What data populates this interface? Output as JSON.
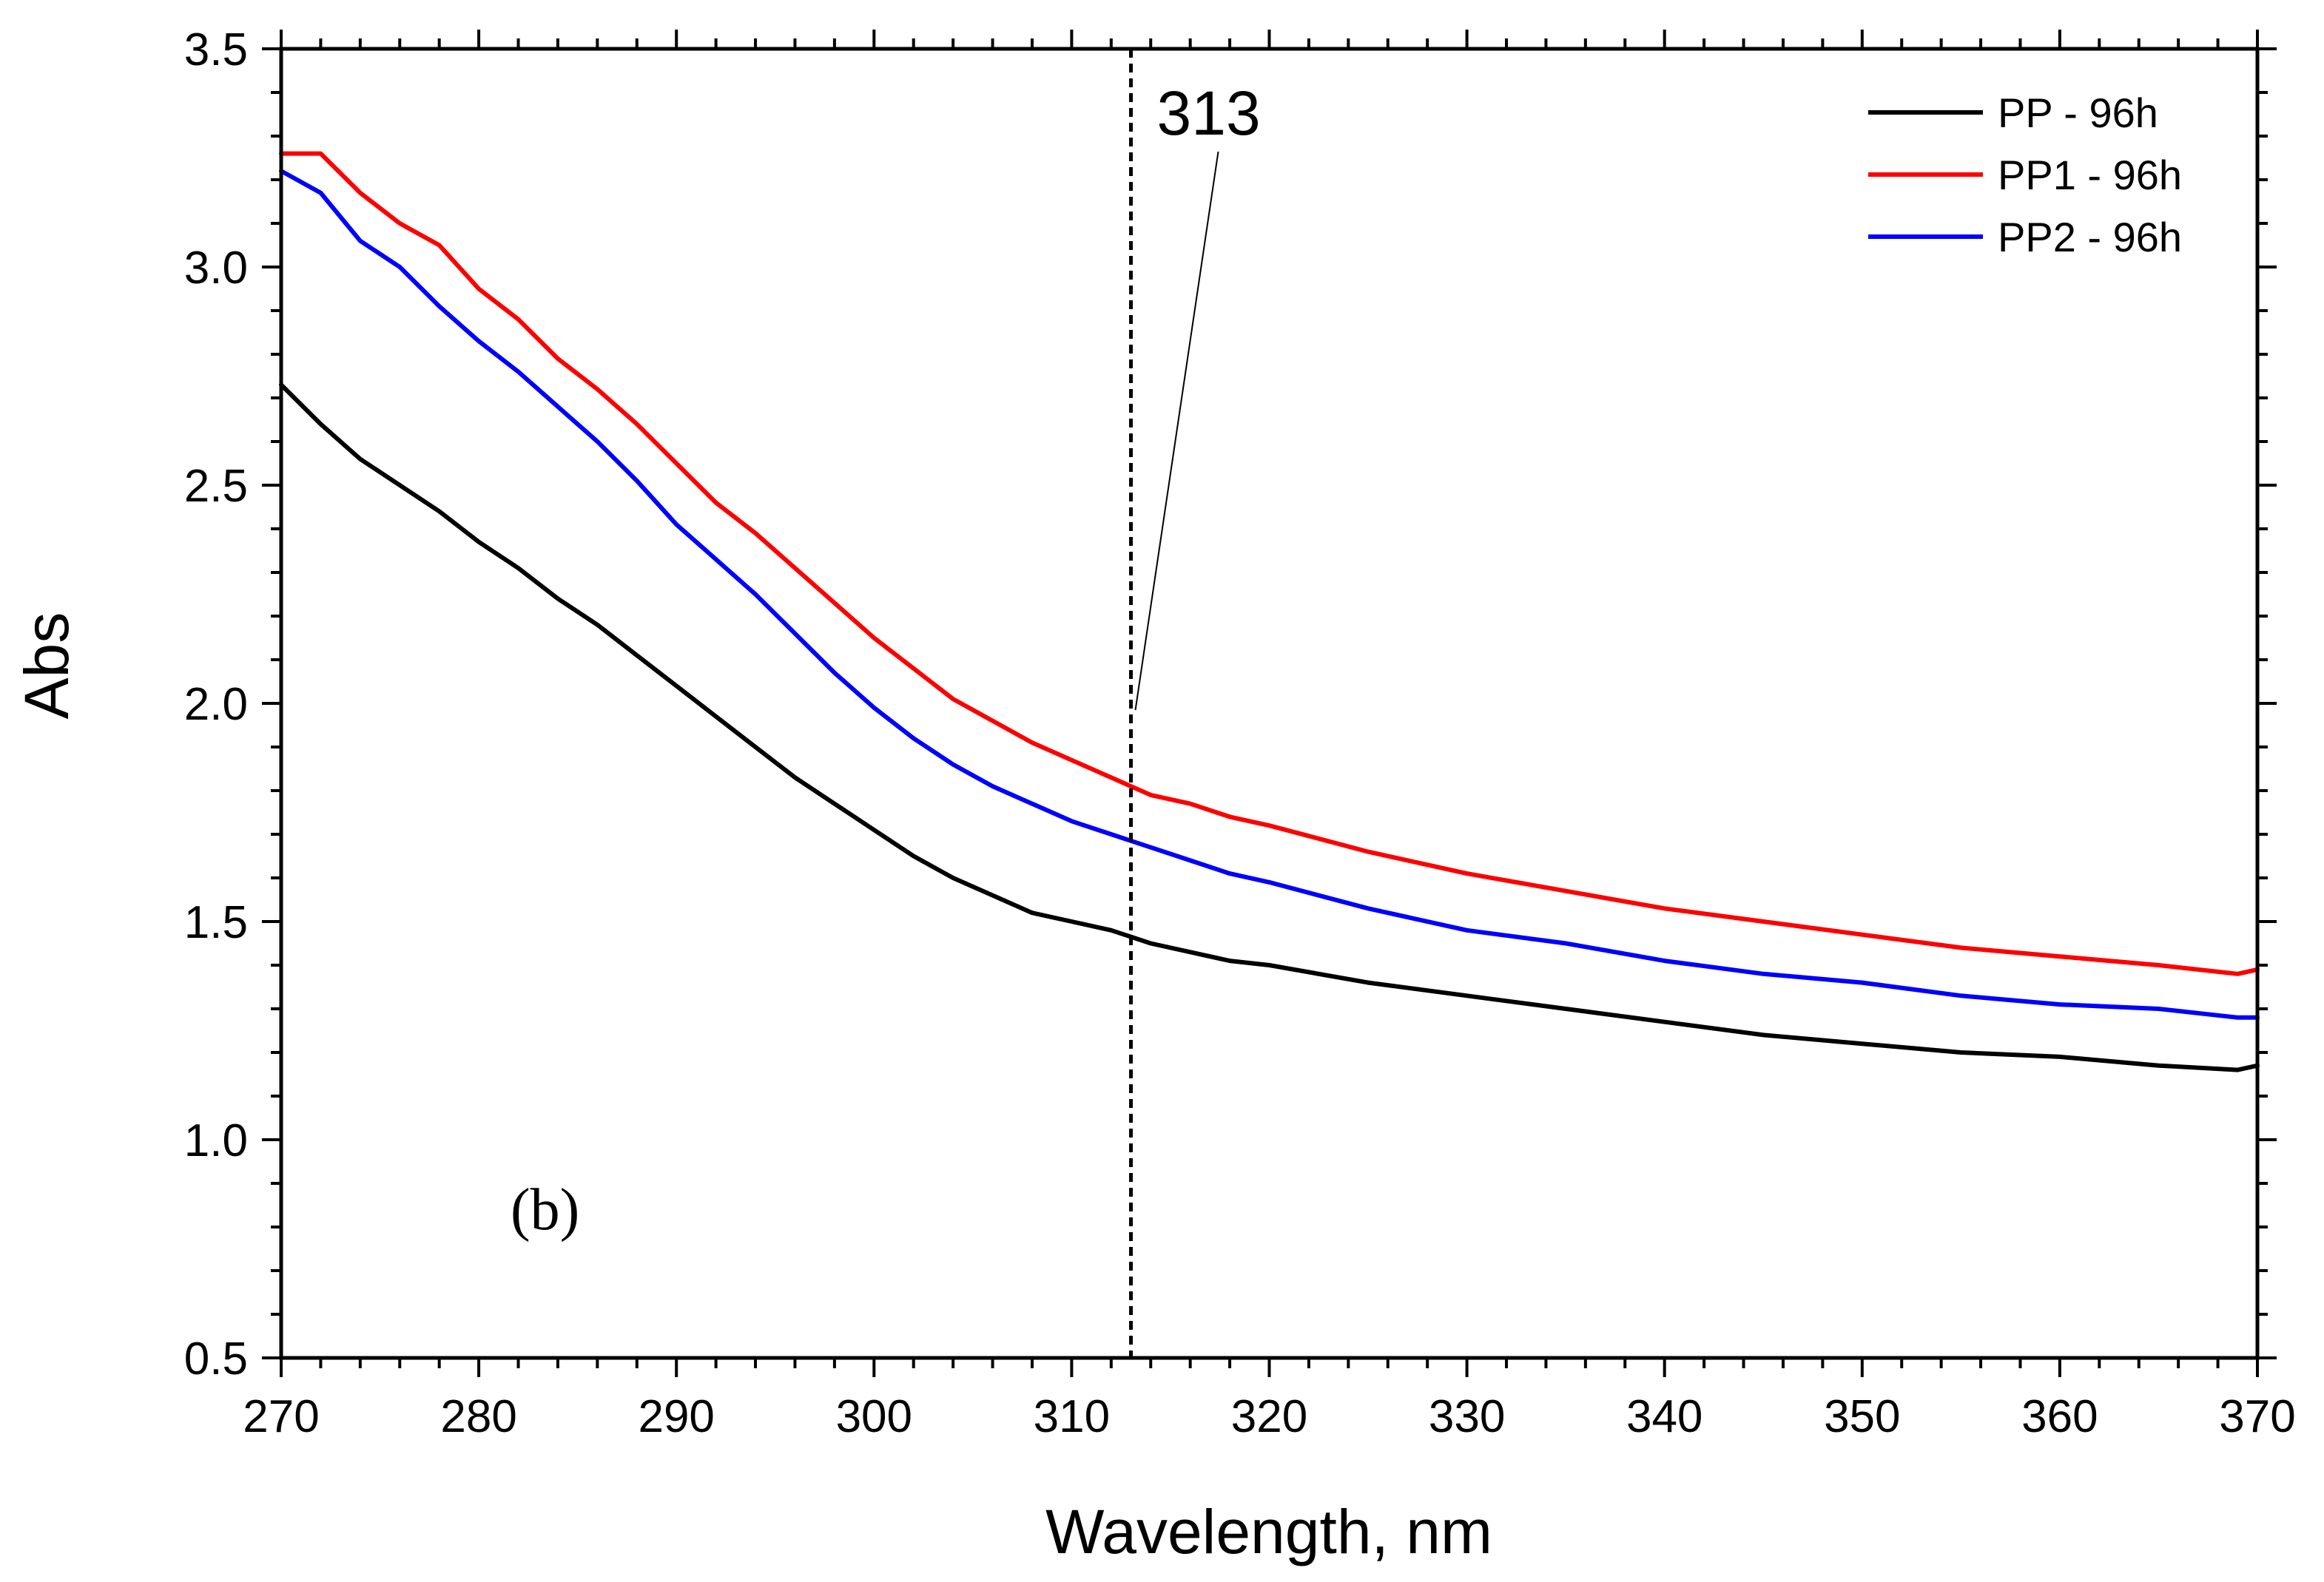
{
  "chart_data": {
    "type": "line",
    "title": "",
    "xlabel": "Wavelength, nm",
    "ylabel": "Abs",
    "xlim": [
      270,
      370
    ],
    "ylim": [
      0.5,
      3.5
    ],
    "x_ticks": [
      270,
      280,
      290,
      300,
      310,
      320,
      330,
      340,
      350,
      360,
      370
    ],
    "x_tick_labels": [
      "270",
      "280",
      "290",
      "300",
      "310",
      "320",
      "330",
      "340",
      "350",
      "360",
      "370"
    ],
    "y_ticks": [
      0.5,
      1.0,
      1.5,
      2.0,
      2.5,
      3.0,
      3.5
    ],
    "y_tick_labels": [
      "0.5",
      "1.0",
      "1.5",
      "2.0",
      "2.5",
      "3.0",
      "3.5"
    ],
    "grid": false,
    "legend_position": "top-right",
    "panel_label": "(b)",
    "annotation": {
      "text": "313",
      "x": 313
    },
    "x": [
      270,
      272,
      274,
      276,
      278,
      280,
      282,
      284,
      286,
      288,
      290,
      292,
      294,
      296,
      298,
      300,
      302,
      304,
      306,
      308,
      310,
      312,
      314,
      316,
      318,
      320,
      325,
      330,
      335,
      340,
      345,
      350,
      355,
      360,
      365,
      369,
      370
    ],
    "series": [
      {
        "name": "PP - 96h",
        "color": "#000000",
        "values": [
          2.73,
          2.64,
          2.56,
          2.5,
          2.44,
          2.37,
          2.31,
          2.24,
          2.18,
          2.11,
          2.04,
          1.97,
          1.9,
          1.83,
          1.77,
          1.71,
          1.65,
          1.6,
          1.56,
          1.52,
          1.5,
          1.48,
          1.45,
          1.43,
          1.41,
          1.4,
          1.36,
          1.33,
          1.3,
          1.27,
          1.24,
          1.22,
          1.2,
          1.19,
          1.17,
          1.16,
          1.17
        ]
      },
      {
        "name": "PP1 - 96h",
        "color": "#ff0000",
        "values": [
          3.26,
          3.26,
          3.17,
          3.1,
          3.05,
          2.95,
          2.88,
          2.79,
          2.72,
          2.64,
          2.55,
          2.46,
          2.39,
          2.31,
          2.23,
          2.15,
          2.08,
          2.01,
          1.96,
          1.91,
          1.87,
          1.83,
          1.79,
          1.77,
          1.74,
          1.72,
          1.66,
          1.61,
          1.57,
          1.53,
          1.5,
          1.47,
          1.44,
          1.42,
          1.4,
          1.38,
          1.39
        ]
      },
      {
        "name": "PP2 - 96h",
        "color": "#0000ff",
        "values": [
          3.22,
          3.17,
          3.06,
          3.0,
          2.91,
          2.83,
          2.76,
          2.68,
          2.6,
          2.51,
          2.41,
          2.33,
          2.25,
          2.16,
          2.07,
          1.99,
          1.92,
          1.86,
          1.81,
          1.77,
          1.73,
          1.7,
          1.67,
          1.64,
          1.61,
          1.59,
          1.53,
          1.48,
          1.45,
          1.41,
          1.38,
          1.36,
          1.33,
          1.31,
          1.3,
          1.28,
          1.28
        ]
      }
    ]
  }
}
